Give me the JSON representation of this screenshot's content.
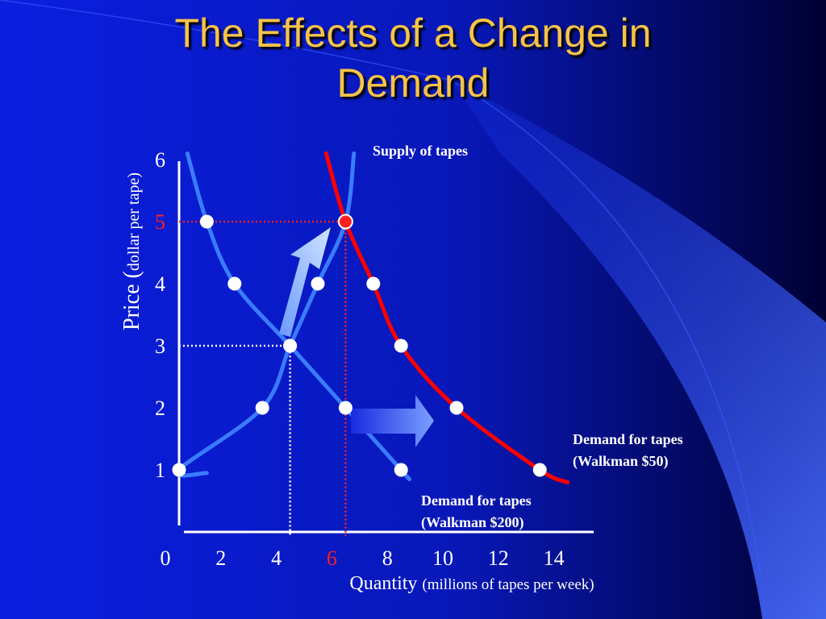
{
  "slide": {
    "title_line1": "The Effects of a Change in",
    "title_line2": "Demand"
  },
  "colors": {
    "background_left": "#0a1ee0",
    "background_right": "#000033",
    "title": "#f6c347",
    "curve": "#3a7cff",
    "supply_curve": "#ff0000",
    "highlight": "#ff2020",
    "text": "#ffffff"
  },
  "chart_data": {
    "type": "line",
    "xlabel": "Quantity",
    "xlabel_sub": "(millions of tapes per week)",
    "ylabel": "Price (",
    "ylabel_sub": "dollar per tape)",
    "xlim": [
      0,
      14
    ],
    "ylim": [
      0,
      6
    ],
    "x_ticks": [
      "0",
      "2",
      "4",
      "6",
      "8",
      "10",
      "12",
      "14"
    ],
    "y_ticks": [
      "1",
      "2",
      "3",
      "4",
      "5",
      "6"
    ],
    "highlight_x_tick": "6",
    "highlight_y_tick": "5",
    "series": [
      {
        "name": "Supply of tapes",
        "role": "supply",
        "points": [
          [
            0,
            1
          ],
          [
            3,
            2
          ],
          [
            4,
            3
          ],
          [
            5,
            4
          ],
          [
            6,
            5
          ]
        ]
      },
      {
        "name": "Demand for tapes (Walkman $200)",
        "label_line1": "Demand for tapes",
        "label_line2": "(Walkman $200)",
        "role": "demand_old",
        "points": [
          [
            1,
            5
          ],
          [
            2,
            4
          ],
          [
            4,
            3
          ],
          [
            6,
            2
          ],
          [
            8,
            1
          ]
        ]
      },
      {
        "name": "Demand for tapes (Walkman $50)",
        "label_line1": "Demand for tapes",
        "label_line2": "(Walkman $50)",
        "role": "demand_new",
        "points": [
          [
            6,
            5
          ],
          [
            7,
            4
          ],
          [
            8,
            3
          ],
          [
            10,
            2
          ],
          [
            13,
            1
          ]
        ]
      }
    ],
    "equilibria": [
      {
        "x": 4,
        "y": 3,
        "color": "white"
      },
      {
        "x": 6,
        "y": 5,
        "color": "red"
      }
    ],
    "grid": false,
    "legend": "none"
  }
}
